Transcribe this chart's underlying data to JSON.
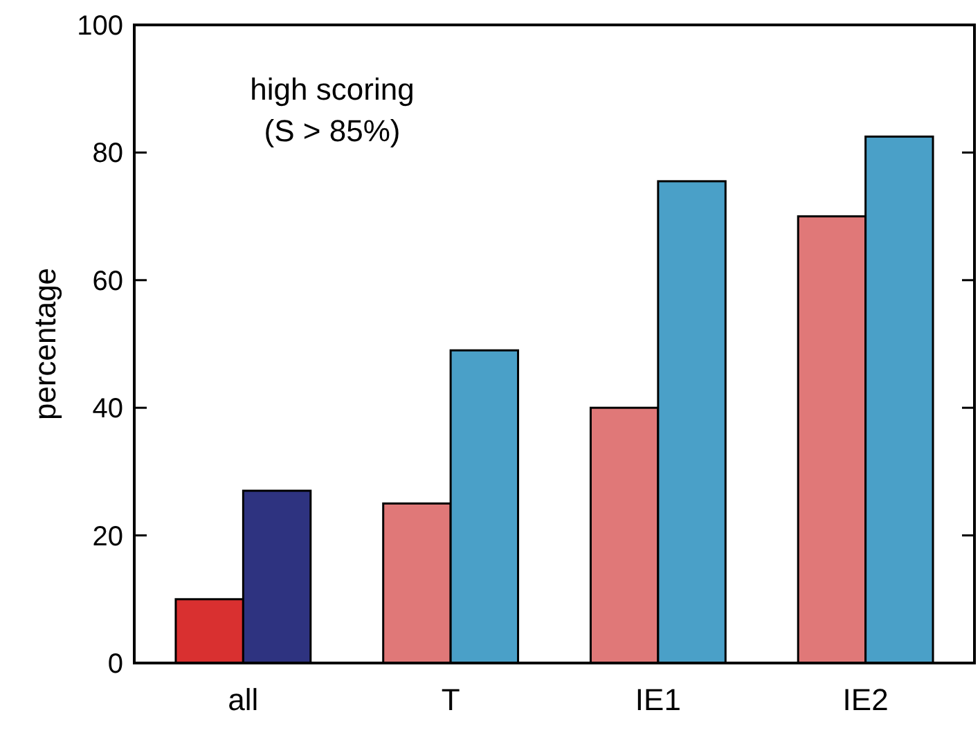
{
  "chart_data": {
    "type": "bar",
    "ylabel": "percentage",
    "categories": [
      "all",
      "T",
      "IE1",
      "IE2"
    ],
    "series": [
      {
        "colors": [
          "#d93030",
          "#e07878",
          "#e07878",
          "#e07878"
        ],
        "values": [
          10,
          25,
          40,
          70
        ]
      },
      {
        "colors": [
          "#2e3380",
          "#4aa0c8",
          "#4aa0c8",
          "#4aa0c8"
        ],
        "values": [
          27,
          49,
          75.5,
          82.5
        ]
      }
    ],
    "ylim": [
      0,
      100
    ],
    "yticks": [
      0,
      20,
      40,
      60,
      80,
      100
    ],
    "grid": false,
    "annotations": [
      "high scoring\n(S > 85%)"
    ]
  }
}
